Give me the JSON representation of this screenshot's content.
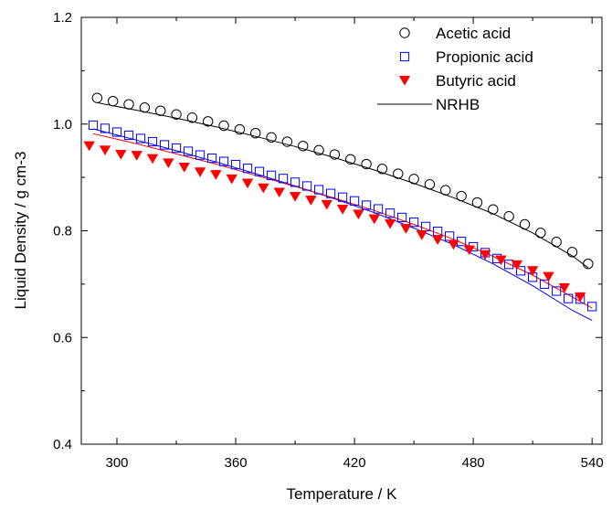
{
  "chart_data": {
    "type": "scatter",
    "title": "",
    "xlabel": "Temperature / K",
    "ylabel": "Liquid Density / g cm-3",
    "xlim": [
      282,
      545
    ],
    "ylim": [
      0.4,
      1.2
    ],
    "xticks": [
      300,
      360,
      420,
      480,
      540
    ],
    "yticks": [
      0.4,
      0.6,
      0.8,
      1.0,
      1.2
    ],
    "xtick_labels": [
      "300",
      "360",
      "420",
      "480",
      "540"
    ],
    "ytick_labels": [
      "0.4",
      "0.6",
      "0.8",
      "1.0",
      "1.2"
    ],
    "grid": false,
    "legend_position": "top-right",
    "series": [
      {
        "name": "Acetic acid",
        "marker": "circle-open",
        "color": "#000000",
        "x": [
          290,
          298,
          306,
          314,
          322,
          330,
          338,
          346,
          354,
          362,
          370,
          378,
          386,
          394,
          402,
          410,
          418,
          426,
          434,
          442,
          450,
          458,
          466,
          474,
          482,
          490,
          498,
          506,
          514,
          522,
          530,
          538
        ],
        "y": [
          1.049,
          1.043,
          1.037,
          1.031,
          1.025,
          1.018,
          1.012,
          1.005,
          0.997,
          0.99,
          0.983,
          0.975,
          0.967,
          0.959,
          0.951,
          0.943,
          0.934,
          0.925,
          0.916,
          0.907,
          0.897,
          0.887,
          0.876,
          0.865,
          0.853,
          0.84,
          0.827,
          0.812,
          0.796,
          0.779,
          0.76,
          0.738
        ]
      },
      {
        "name": "Propionic acid",
        "marker": "square-open",
        "color": "#0000ff",
        "x": [
          288,
          294,
          300,
          306,
          312,
          318,
          324,
          330,
          336,
          342,
          348,
          354,
          360,
          366,
          372,
          378,
          384,
          390,
          396,
          402,
          408,
          414,
          420,
          426,
          432,
          438,
          444,
          450,
          456,
          462,
          468,
          474,
          480,
          486,
          492,
          498,
          504,
          510,
          516,
          522,
          528,
          534,
          540
        ],
        "y": [
          0.998,
          0.992,
          0.985,
          0.979,
          0.973,
          0.967,
          0.961,
          0.955,
          0.949,
          0.942,
          0.936,
          0.93,
          0.924,
          0.917,
          0.911,
          0.904,
          0.898,
          0.891,
          0.884,
          0.877,
          0.87,
          0.863,
          0.856,
          0.848,
          0.841,
          0.833,
          0.825,
          0.816,
          0.808,
          0.799,
          0.79,
          0.78,
          0.77,
          0.759,
          0.748,
          0.737,
          0.725,
          0.713,
          0.7,
          0.687,
          0.673,
          0.672,
          0.658
        ]
      },
      {
        "name": "Butyric acid",
        "marker": "triangle-down-filled",
        "color": "#ff0000",
        "x": [
          286,
          294,
          302,
          310,
          318,
          326,
          334,
          342,
          350,
          358,
          366,
          374,
          382,
          390,
          398,
          406,
          414,
          422,
          430,
          438,
          446,
          454,
          462,
          470,
          478,
          486,
          494,
          502,
          510,
          518,
          526,
          534
        ],
        "y": [
          0.959,
          0.951,
          0.943,
          0.941,
          0.935,
          0.927,
          0.919,
          0.91,
          0.905,
          0.897,
          0.889,
          0.88,
          0.872,
          0.864,
          0.857,
          0.849,
          0.84,
          0.831,
          0.822,
          0.813,
          0.804,
          0.792,
          0.783,
          0.774,
          0.764,
          0.755,
          0.745,
          0.736,
          0.725,
          0.714,
          0.693,
          0.676
        ]
      },
      {
        "name": "NRHB",
        "marker": "line",
        "color": "#000000",
        "x": [
          290,
          310,
          330,
          350,
          370,
          390,
          410,
          430,
          450,
          470,
          490,
          510,
          530,
          538
        ],
        "y": [
          1.04,
          1.026,
          1.011,
          0.995,
          0.977,
          0.958,
          0.937,
          0.914,
          0.889,
          0.862,
          0.832,
          0.796,
          0.753,
          0.731
        ]
      },
      {
        "marker": "line",
        "color": "#0000ff",
        "x": [
          288,
          310,
          330,
          350,
          370,
          390,
          410,
          430,
          450,
          470,
          490,
          510,
          530,
          540
        ],
        "y": [
          0.991,
          0.97,
          0.95,
          0.929,
          0.907,
          0.884,
          0.86,
          0.834,
          0.805,
          0.774,
          0.738,
          0.697,
          0.651,
          0.632
        ]
      },
      {
        "marker": "line",
        "color": "#ff0000",
        "x": [
          288,
          310,
          330,
          350,
          370,
          390,
          410,
          430,
          450,
          470,
          490,
          510,
          530,
          540
        ],
        "y": [
          0.982,
          0.963,
          0.944,
          0.925,
          0.904,
          0.883,
          0.861,
          0.838,
          0.812,
          0.784,
          0.752,
          0.717,
          0.676,
          0.655
        ]
      }
    ]
  }
}
